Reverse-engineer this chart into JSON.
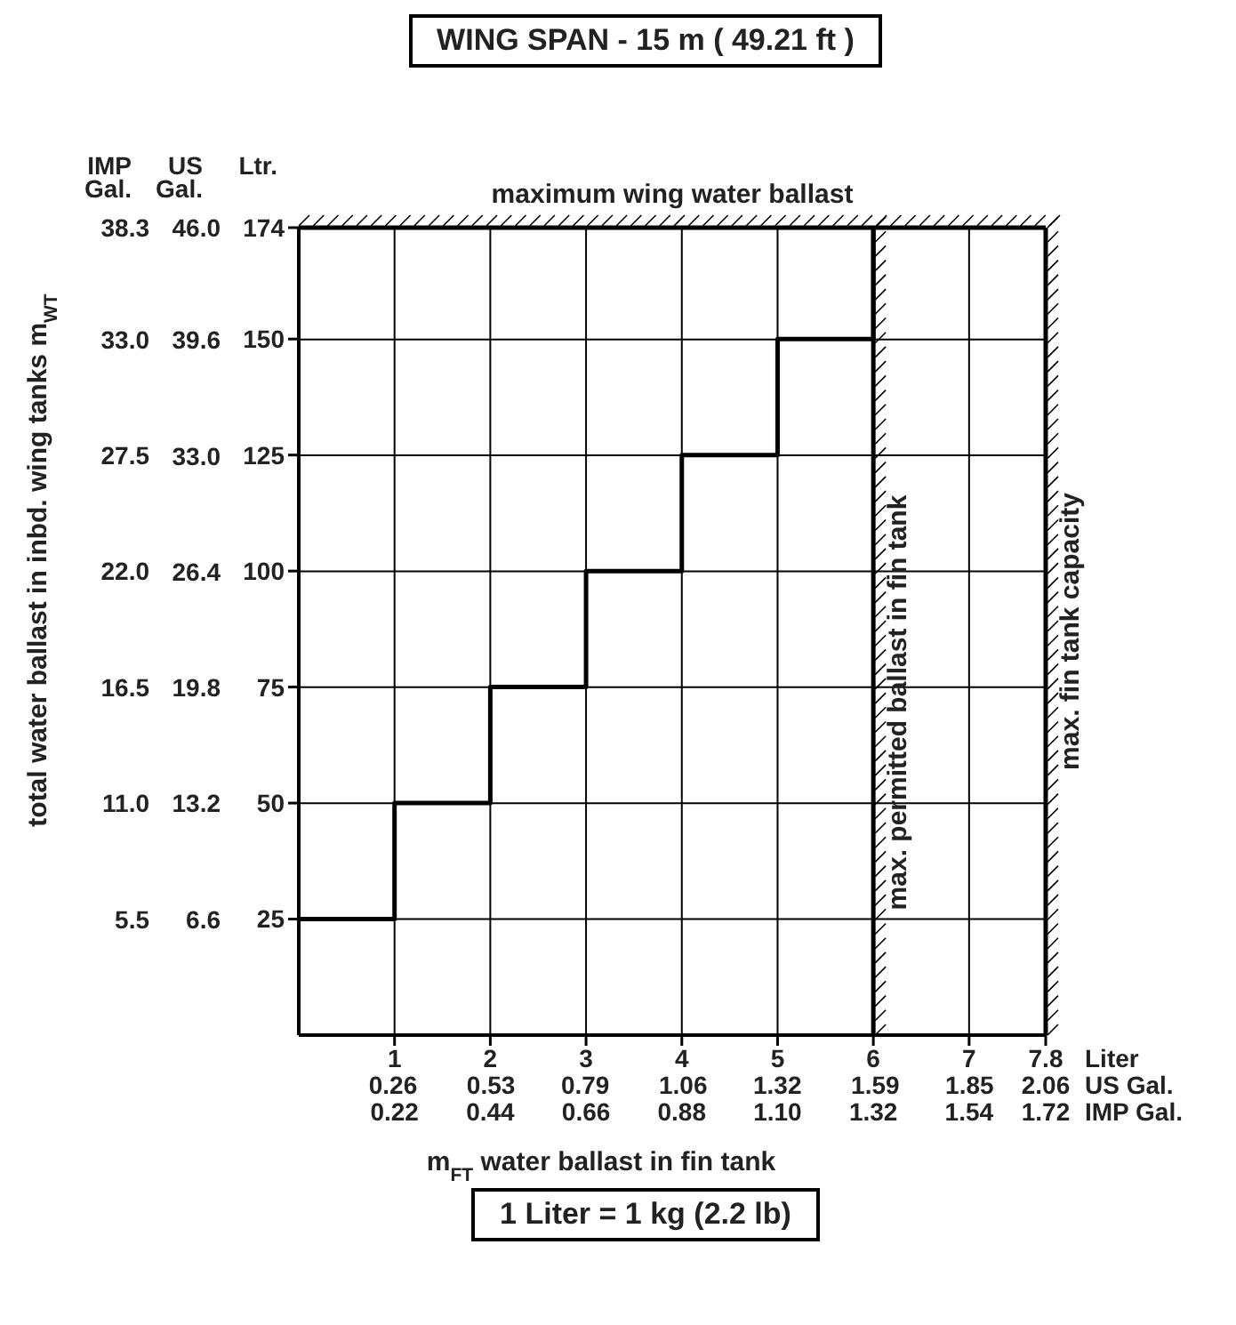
{
  "chart_data": {
    "type": "step",
    "title": "WING SPAN - 15 m  ( 49.21 ft )",
    "xlabel": "m$_{FT}$  water ballast in fin tank",
    "ylabel": "total water ballast in inbd. wing tanks  m$_{WT}$",
    "x2label": "US Gal.",
    "y2label": "US Gal.",
    "y3label": "Ltr.",
    "annotations": [
      "Liter",
      "IMP Gal.",
      "0.22",
      "0.44",
      "0.66",
      "0.88",
      "1.10",
      "1.32",
      "1.54",
      "1.72",
      "IMP Gal.",
      "1 Liter = 1 kg (2.2 lb)"
    ],
    "x": [
      0,
      1,
      2,
      3,
      4,
      5,
      6
    ],
    "series": [
      {
        "color": "#000000",
        "axis": "y3",
        "values": [
          25,
          50,
          75,
          100,
          125,
          150,
          174
        ]
      }
    ],
    "xlim": [
      0,
      7.8
    ],
    "xticks": [
      1,
      2,
      3,
      4,
      5,
      6,
      7,
      7.8
    ],
    "x2lim": [
      0,
      2.06
    ],
    "x2ticks": [
      0.26,
      0.53,
      0.79,
      1.06,
      1.32,
      1.59,
      1.85,
      2.06
    ],
    "ylim": [
      0,
      38.3
    ],
    "yticks": [
      5.5,
      {
        "value": 11,
        "label": "11.0"
      },
      16.5,
      {
        "value": 22,
        "label": "22.0"
      },
      27.5,
      {
        "value": 33,
        "label": "33.0"
      },
      38.3
    ],
    "y2lim": [
      0,
      46
    ],
    "y2ticks": [
      6.6,
      13.2,
      19.8,
      26.4,
      {
        "value": 33,
        "label": "33.0"
      },
      39.6,
      {
        "value": 46,
        "label": "46.0"
      }
    ],
    "y3lim": [
      0,
      174
    ],
    "y3ticks": [
      25,
      50,
      75,
      100,
      125,
      150,
      174
    ],
    "ref_lines": [
      {
        "axis": "y3",
        "value": 174,
        "label": "maximum wing water ballast"
      },
      {
        "axis": "x",
        "value": 6,
        "label": "max. permitted ballast in fin tank"
      },
      {
        "axis": "x",
        "value": 7.8,
        "label": "max. fin tank capacity"
      }
    ],
    "grid": true
  }
}
